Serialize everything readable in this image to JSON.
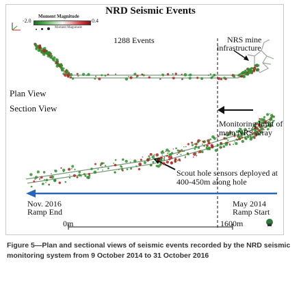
{
  "figure": {
    "title": "NRD Seismic Events",
    "colorbar": {
      "title": "Moment Magnitude",
      "min": "-2.0",
      "max": "0.4",
      "colors": [
        "#1b6e1b",
        "#4aa64a",
        "#9bd49b",
        "#f2f2f2",
        "#e9a2a2",
        "#d24040",
        "#8e0f0f"
      ]
    },
    "moment_legend": "Moment Magnitude",
    "events_count": "1288 Events",
    "labels": {
      "plan_view": "Plan View",
      "section_view": "Section View",
      "mine_infra_line1": "NRS mine",
      "mine_infra_line2": "infrastructure",
      "monitor_line1": "Monitoring limit of",
      "monitor_line2": "main NRS array",
      "scout_line1": "Scout hole sensors deployed at",
      "scout_line2": "400-450m along hole",
      "nov_line1": "Nov. 2016",
      "nov_line2": "Ramp End",
      "may_line1": "May 2014",
      "may_line2": "Ramp Start",
      "scale_start": "0m",
      "scale_end": "1600m"
    },
    "accent_colors": {
      "timeline_arrow": "#2a66b8",
      "event_green": "#2f8f2f",
      "event_red": "#b52222",
      "tunnel": "#7a9a7a"
    }
  },
  "caption": "Figure 5—Plan and sectional views of seismic events recorded by the NRD seismic monitoring system from 9 October 2014 to 31 October 2016"
}
